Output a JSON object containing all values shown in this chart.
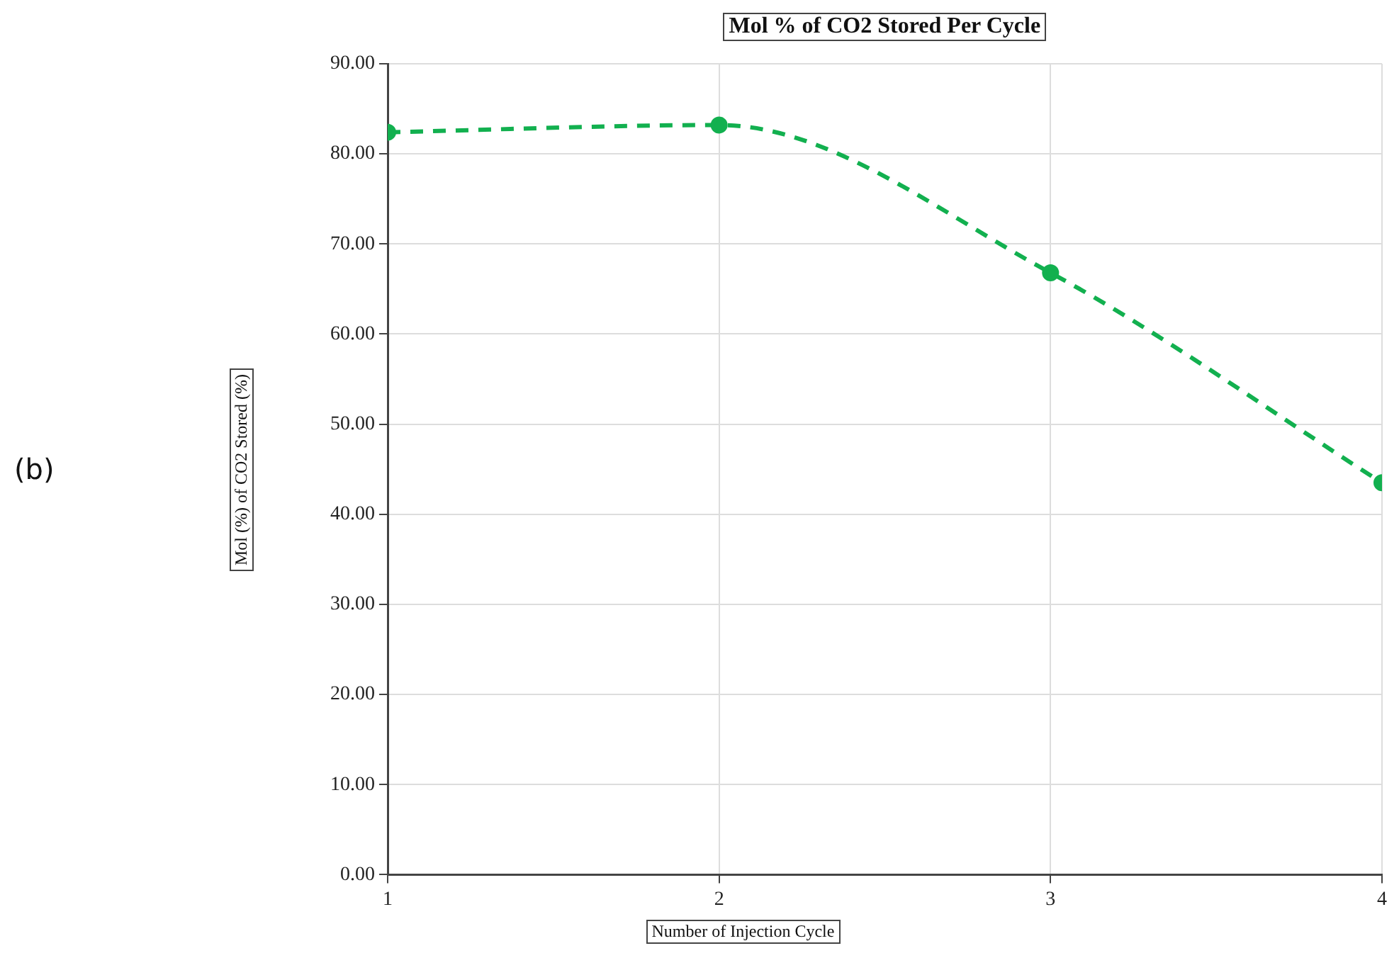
{
  "chart_data": {
    "type": "line",
    "title": "Mol % of CO2 Stored Per Cycle",
    "xlabel": "Number of Injection Cycle",
    "ylabel": "Mol (%) of CO2 Stored (%)",
    "annotations": [
      "(b)"
    ],
    "x": [
      1,
      2,
      3,
      4
    ],
    "series": [
      {
        "color": "#12b04f",
        "values": [
          82.4,
          83.2,
          66.8,
          43.5
        ]
      }
    ],
    "xlim": [
      1,
      4
    ],
    "xticks": [
      1,
      2,
      3,
      4
    ],
    "ylim": [
      0,
      90
    ],
    "yticks": [
      {
        "value": 0,
        "label": "0.00"
      },
      {
        "value": 10,
        "label": "10.00"
      },
      {
        "value": 20,
        "label": "20.00"
      },
      {
        "value": 30,
        "label": "30.00"
      },
      {
        "value": 40,
        "label": "40.00"
      },
      {
        "value": 50,
        "label": "50.00"
      },
      {
        "value": 60,
        "label": "60.00"
      },
      {
        "value": 70,
        "label": "70.00"
      },
      {
        "value": 80,
        "label": "80.00"
      },
      {
        "value": 90,
        "label": "90.00"
      }
    ],
    "grid": true,
    "marker": "circle",
    "line_style": "dashed"
  }
}
